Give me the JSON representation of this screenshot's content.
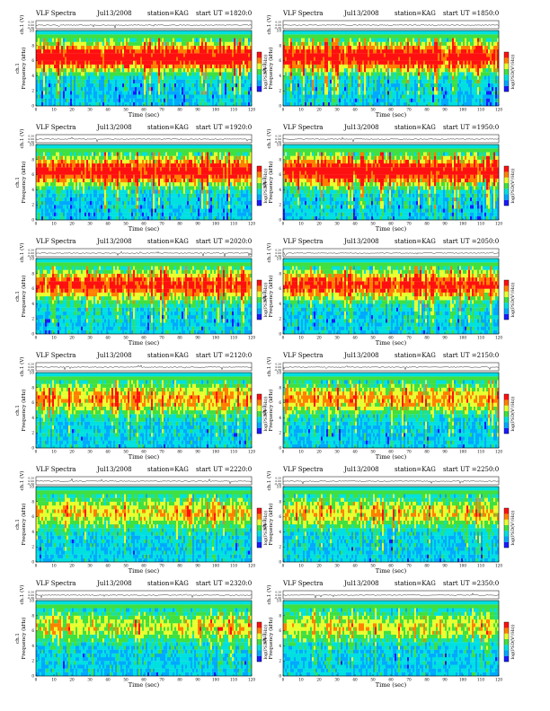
{
  "figure": {
    "colormap": [
      "#1a1aff",
      "#00a8ff",
      "#00e0e0",
      "#40e040",
      "#e8ff30",
      "#ff8000",
      "#ff1010"
    ]
  },
  "chart_data": [
    {
      "type": "heatmap",
      "title": "VLF Spectra",
      "date": "Jul13/2008",
      "station": "station=KAG",
      "start": "start  UT  =1820:0",
      "top_ylabel": "ch.1 (V)",
      "top_yticks": [
        "0.20",
        "0.00",
        "-0.30"
      ],
      "ylabel": "Frequency (kHz)",
      "ylabel_ch": "ch.1",
      "yticks": [
        "0",
        "2",
        "4",
        "6",
        "8",
        "10"
      ],
      "ylim": [
        0,
        10
      ],
      "xlabel": "Time (sec)",
      "xticks": [
        "0",
        "10",
        "20",
        "30",
        "40",
        "50",
        "60",
        "70",
        "80",
        "90",
        "100",
        "110",
        "120"
      ],
      "xlim": [
        0,
        120
      ],
      "colorbar_label": "log(PSD(V²/Hz))",
      "intensity": 0.95
    },
    {
      "type": "heatmap",
      "title": "VLF Spectra",
      "date": "Jul13/2008",
      "station": "station=KAG",
      "start": "start  UT  =1850:0",
      "top_ylabel": "ch.1 (V)",
      "top_yticks": [
        "0.20",
        "0.00",
        "-0.30"
      ],
      "ylabel": "Frequency (kHz)",
      "ylabel_ch": "ch.1",
      "yticks": [
        "0",
        "2",
        "4",
        "6",
        "8",
        "10"
      ],
      "ylim": [
        0,
        10
      ],
      "xlabel": "Time (sec)",
      "xticks": [
        "0",
        "10",
        "20",
        "30",
        "40",
        "50",
        "60",
        "70",
        "80",
        "90",
        "100",
        "110",
        "120"
      ],
      "xlim": [
        0,
        120
      ],
      "colorbar_label": "log(PSD(V²/Hz))",
      "intensity": 0.92
    },
    {
      "type": "heatmap",
      "title": "VLF Spectra",
      "date": "Jul13/2008",
      "station": "station=KAG",
      "start": "start  UT  =1920:0",
      "top_ylabel": "ch.1 (V)",
      "top_yticks": [
        "0.20",
        "0.00",
        "-0.30"
      ],
      "ylabel": "Frequency (kHz)",
      "ylabel_ch": "ch.1",
      "yticks": [
        "0",
        "2",
        "4",
        "6",
        "8",
        "10"
      ],
      "ylim": [
        0,
        10
      ],
      "xlabel": "Time (sec)",
      "xticks": [
        "0",
        "10",
        "20",
        "30",
        "40",
        "50",
        "60",
        "70",
        "80",
        "90",
        "100",
        "110",
        "120"
      ],
      "xlim": [
        0,
        120
      ],
      "colorbar_label": "log(PSD(V²/Hz))",
      "intensity": 0.9
    },
    {
      "type": "heatmap",
      "title": "VLF Spectra",
      "date": "Jul13/2008",
      "station": "station=KAG",
      "start": "start  UT  =1950:0",
      "top_ylabel": "ch.1 (V)",
      "top_yticks": [
        "0.20",
        "0.00",
        "-0.30"
      ],
      "ylabel": "Frequency (kHz)",
      "ylabel_ch": "ch.1",
      "yticks": [
        "0",
        "2",
        "4",
        "6",
        "8",
        "10"
      ],
      "ylim": [
        0,
        10
      ],
      "xlabel": "Time (sec)",
      "xticks": [
        "0",
        "10",
        "20",
        "30",
        "40",
        "50",
        "60",
        "70",
        "80",
        "90",
        "100",
        "110",
        "120"
      ],
      "xlim": [
        0,
        120
      ],
      "colorbar_label": "log(PSD(V²/Hz))",
      "intensity": 0.9
    },
    {
      "type": "heatmap",
      "title": "VLF Spectra",
      "date": "Jul13/2008",
      "station": "station=KAG",
      "start": "start  UT  =2020:0",
      "top_ylabel": "ch.1 (V)",
      "top_yticks": [
        "0.20",
        "0.00",
        "-0.30"
      ],
      "ylabel": "Frequency (kHz)",
      "ylabel_ch": "ch.1",
      "yticks": [
        "0",
        "2",
        "4",
        "6",
        "8",
        "10"
      ],
      "ylim": [
        0,
        10
      ],
      "xlabel": "Time (sec)",
      "xticks": [
        "0",
        "10",
        "20",
        "30",
        "40",
        "50",
        "60",
        "70",
        "80",
        "90",
        "100",
        "110",
        "120"
      ],
      "xlim": [
        0,
        120
      ],
      "colorbar_label": "log(PSD(V²/Hz))",
      "intensity": 0.78
    },
    {
      "type": "heatmap",
      "title": "VLF Spectra",
      "date": "Jul13/2008",
      "station": "station=KAG",
      "start": "start  UT  =2050:0",
      "top_ylabel": "ch.1 (V)",
      "top_yticks": [
        "0.20",
        "0.00",
        "-0.30"
      ],
      "ylabel": "Frequency (kHz)",
      "ylabel_ch": "ch.1",
      "yticks": [
        "0",
        "2",
        "4",
        "6",
        "8",
        "10"
      ],
      "ylim": [
        0,
        10
      ],
      "xlabel": "Time (sec)",
      "xticks": [
        "0",
        "10",
        "20",
        "30",
        "40",
        "50",
        "60",
        "70",
        "80",
        "90",
        "100",
        "110",
        "120"
      ],
      "xlim": [
        0,
        120
      ],
      "colorbar_label": "log(PSD(V²/Hz))",
      "intensity": 0.78
    },
    {
      "type": "heatmap",
      "title": "VLF Spectra",
      "date": "Jul13/2008",
      "station": "station=KAG",
      "start": "start  UT  =2120:0",
      "top_ylabel": "ch.1 (V)",
      "top_yticks": [
        "0.20",
        "0.00",
        "-0.30"
      ],
      "ylabel": "Frequency (kHz)",
      "ylabel_ch": "ch.1",
      "yticks": [
        "0",
        "2",
        "4",
        "6",
        "8",
        "10"
      ],
      "ylim": [
        0,
        10
      ],
      "xlabel": "Time (sec)",
      "xticks": [
        "0",
        "10",
        "20",
        "30",
        "40",
        "50",
        "60",
        "70",
        "80",
        "90",
        "100",
        "110",
        "120"
      ],
      "xlim": [
        0,
        120
      ],
      "colorbar_label": "log(PSD(V²/Hz))",
      "intensity": 0.6
    },
    {
      "type": "heatmap",
      "title": "VLF Spectra",
      "date": "Jul13/2008",
      "station": "station=KAG",
      "start": "start  UT  =2150:0",
      "top_ylabel": "ch.1 (V)",
      "top_yticks": [
        "0.20",
        "0.00",
        "-0.30"
      ],
      "ylabel": "Frequency (kHz)",
      "ylabel_ch": "ch.1",
      "yticks": [
        "0",
        "2",
        "4",
        "6",
        "8",
        "10"
      ],
      "ylim": [
        0,
        10
      ],
      "xlabel": "Time (sec)",
      "xticks": [
        "0",
        "10",
        "20",
        "30",
        "40",
        "50",
        "60",
        "70",
        "80",
        "90",
        "100",
        "110",
        "120"
      ],
      "xlim": [
        0,
        120
      ],
      "colorbar_label": "log(PSD(V²/Hz))",
      "intensity": 0.58
    },
    {
      "type": "heatmap",
      "title": "VLF Spectra",
      "date": "Jul13/2008",
      "station": "station=KAG",
      "start": "start  UT  =2220:0",
      "top_ylabel": "ch.1 (V)",
      "top_yticks": [
        "0.20",
        "0.00",
        "-0.30"
      ],
      "ylabel": "Frequency (kHz)",
      "ylabel_ch": "ch.1",
      "yticks": [
        "0",
        "2",
        "4",
        "6",
        "8",
        "10"
      ],
      "ylim": [
        0,
        10
      ],
      "xlabel": "Time (sec)",
      "xticks": [
        "0",
        "10",
        "20",
        "30",
        "40",
        "50",
        "60",
        "70",
        "80",
        "90",
        "100",
        "110",
        "120"
      ],
      "xlim": [
        0,
        120
      ],
      "colorbar_label": "log(PSD(V²/Hz))",
      "intensity": 0.5
    },
    {
      "type": "heatmap",
      "title": "VLF Spectra",
      "date": "Jul13/2008",
      "station": "station=KAG",
      "start": "start  UT  =2250:0",
      "top_ylabel": "ch.1 (V)",
      "top_yticks": [
        "0.20",
        "0.00",
        "-0.30"
      ],
      "ylabel": "Frequency (kHz)",
      "ylabel_ch": "ch.1",
      "yticks": [
        "0",
        "2",
        "4",
        "6",
        "8",
        "10"
      ],
      "ylim": [
        0,
        10
      ],
      "xlabel": "Time (sec)",
      "xticks": [
        "0",
        "10",
        "20",
        "30",
        "40",
        "50",
        "60",
        "70",
        "80",
        "90",
        "100",
        "110",
        "120"
      ],
      "xlim": [
        0,
        120
      ],
      "colorbar_label": "log(PSD(V²/Hz))",
      "intensity": 0.5
    },
    {
      "type": "heatmap",
      "title": "VLF Spectra",
      "date": "Jul13/2008",
      "station": "station=KAG",
      "start": "start  UT  =2320:0",
      "top_ylabel": "ch.1 (V)",
      "top_yticks": [
        "0.20",
        "0.00",
        "-0.30"
      ],
      "ylabel": "Frequency (kHz)",
      "ylabel_ch": "ch.1",
      "yticks": [
        "0",
        "2",
        "4",
        "6",
        "8",
        "10"
      ],
      "ylim": [
        0,
        10
      ],
      "xlabel": "Time (sec)",
      "xticks": [
        "0",
        "10",
        "20",
        "30",
        "40",
        "50",
        "60",
        "70",
        "80",
        "90",
        "100",
        "110",
        "120"
      ],
      "xlim": [
        0,
        120
      ],
      "colorbar_label": "log(PSD(V²/Hz))",
      "intensity": 0.45
    },
    {
      "type": "heatmap",
      "title": "VLF Spectra",
      "date": "Jul13/2008",
      "station": "station=KAG",
      "start": "start  UT  =2350:0",
      "top_ylabel": "ch.1 (V)",
      "top_yticks": [
        "0.20",
        "0.00",
        "-0.30"
      ],
      "ylabel": "Frequency (kHz)",
      "ylabel_ch": "ch.1",
      "yticks": [
        "0",
        "2",
        "4",
        "6",
        "8",
        "10"
      ],
      "ylim": [
        0,
        10
      ],
      "xlabel": "Time (sec)",
      "xticks": [
        "0",
        "10",
        "20",
        "30",
        "40",
        "50",
        "60",
        "70",
        "80",
        "90",
        "100",
        "110",
        "120"
      ],
      "xlim": [
        0,
        120
      ],
      "colorbar_label": "log(PSD(V²/Hz))",
      "intensity": 0.45
    }
  ]
}
